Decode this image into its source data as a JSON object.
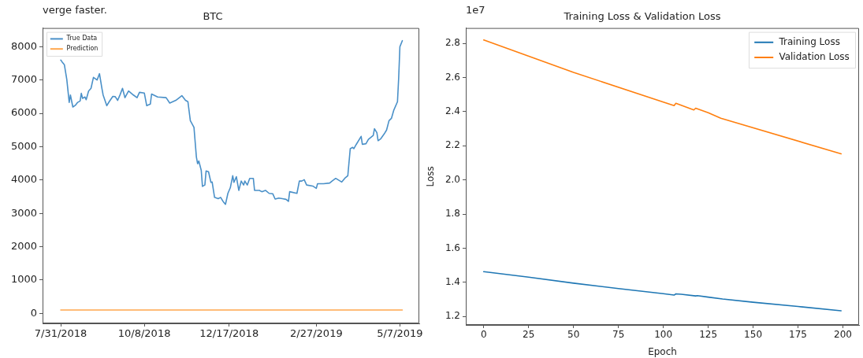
{
  "chart_data": [
    {
      "type": "line",
      "title": "BTC",
      "annotations": [
        "verge faster."
      ],
      "legend": "top left",
      "xlim": [
        "2018-07-16",
        "2019-05-23"
      ],
      "xticks": [
        {
          "value": "2018-07-31",
          "label": "7/31/2018"
        },
        {
          "value": "2018-10-08",
          "label": "10/8/2018"
        },
        {
          "value": "2018-12-17",
          "label": "12/17/2018"
        },
        {
          "value": "2019-02-27",
          "label": "2/27/2019"
        },
        {
          "value": "2019-05-07",
          "label": "5/7/2019"
        }
      ],
      "ylim": [
        -300,
        8560
      ],
      "yticks": [
        0,
        1000,
        2000,
        3000,
        4000,
        5000,
        6000,
        7000,
        8000
      ],
      "series": [
        {
          "name": "True Data",
          "color": "#4a90c8",
          "x": [
            "2018-07-31",
            "2018-08-01",
            "2018-08-03",
            "2018-08-05",
            "2018-08-07",
            "2018-08-08",
            "2018-08-10",
            "2018-08-12",
            "2018-08-14",
            "2018-08-16",
            "2018-08-17",
            "2018-08-18",
            "2018-08-20",
            "2018-08-21",
            "2018-08-23",
            "2018-08-25",
            "2018-08-27",
            "2018-08-30",
            "2018-09-01",
            "2018-09-03",
            "2018-09-04",
            "2018-09-07",
            "2018-09-09",
            "2018-09-12",
            "2018-09-14",
            "2018-09-16",
            "2018-09-18",
            "2018-09-20",
            "2018-09-22",
            "2018-09-25",
            "2018-09-29",
            "2018-10-02",
            "2018-10-04",
            "2018-10-08",
            "2018-10-10",
            "2018-10-13",
            "2018-10-14",
            "2018-10-19",
            "2018-10-26",
            "2018-10-29",
            "2018-11-03",
            "2018-11-08",
            "2018-11-11",
            "2018-11-13",
            "2018-11-15",
            "2018-11-18",
            "2018-11-20",
            "2018-11-21",
            "2018-11-22",
            "2018-11-24",
            "2018-11-25",
            "2018-11-27",
            "2018-11-28",
            "2018-11-30",
            "2018-12-02",
            "2018-12-03",
            "2018-12-05",
            "2018-12-08",
            "2018-12-10",
            "2018-12-12",
            "2018-12-14",
            "2018-12-16",
            "2018-12-18",
            "2018-12-20",
            "2018-12-21",
            "2018-12-23",
            "2018-12-25",
            "2018-12-27",
            "2018-12-29",
            "2018-12-30",
            "2019-01-01",
            "2019-01-03",
            "2019-01-06",
            "2019-01-07",
            "2019-01-11",
            "2019-01-13",
            "2019-01-16",
            "2019-01-19",
            "2019-01-22",
            "2019-01-24",
            "2019-01-27",
            "2019-01-30",
            "2019-02-02",
            "2019-02-04",
            "2019-02-05",
            "2019-02-11",
            "2019-02-13",
            "2019-02-15",
            "2019-02-17",
            "2019-02-19",
            "2019-02-24",
            "2019-02-27",
            "2019-02-28",
            "2019-03-05",
            "2019-03-10",
            "2019-03-12",
            "2019-03-15",
            "2019-03-20",
            "2019-03-23",
            "2019-03-25",
            "2019-03-27",
            "2019-03-29",
            "2019-03-30",
            "2019-04-01",
            "2019-04-05",
            "2019-04-06",
            "2019-04-09",
            "2019-04-11",
            "2019-04-15",
            "2019-04-16",
            "2019-04-18",
            "2019-04-19",
            "2019-04-21",
            "2019-04-24",
            "2019-04-26",
            "2019-04-28",
            "2019-04-30",
            "2019-05-02",
            "2019-05-05",
            "2019-05-06",
            "2019-05-07",
            "2019-05-09"
          ],
          "values": [
            7600,
            7550,
            7460,
            7020,
            6330,
            6550,
            6190,
            6240,
            6330,
            6370,
            6600,
            6450,
            6490,
            6410,
            6670,
            6750,
            7080,
            7000,
            7190,
            6750,
            6550,
            6230,
            6350,
            6510,
            6500,
            6390,
            6560,
            6750,
            6470,
            6670,
            6550,
            6470,
            6630,
            6610,
            6230,
            6280,
            6580,
            6490,
            6470,
            6310,
            6390,
            6530,
            6390,
            6350,
            5780,
            5580,
            4690,
            4490,
            4570,
            4290,
            3810,
            3850,
            4270,
            4250,
            3930,
            3940,
            3480,
            3440,
            3480,
            3360,
            3270,
            3600,
            3770,
            4130,
            3930,
            4100,
            3690,
            3970,
            3850,
            3970,
            3850,
            4050,
            4050,
            3690,
            3690,
            3650,
            3690,
            3600,
            3590,
            3430,
            3460,
            3440,
            3420,
            3360,
            3650,
            3600,
            3970,
            3970,
            4010,
            3850,
            3820,
            3750,
            3890,
            3890,
            3910,
            3970,
            4050,
            3940,
            4070,
            4130,
            4940,
            4980,
            4940,
            5070,
            5310,
            5070,
            5090,
            5220,
            5340,
            5540,
            5420,
            5180,
            5230,
            5380,
            5500,
            5780,
            5850,
            6100,
            6350,
            7070,
            8000,
            8180
          ]
        },
        {
          "name": "Prediction",
          "color": "#ffa64d",
          "x": [
            "2018-07-31",
            "2019-05-09"
          ],
          "values": [
            100,
            100
          ]
        }
      ]
    },
    {
      "type": "line",
      "title": "Training Loss & Validation Loss",
      "xlabel": "Epoch",
      "ylabel": "Loss",
      "annotations": [
        "1e7"
      ],
      "legend": "top right",
      "xlim": [
        -10,
        209
      ],
      "xticks": [
        0,
        25,
        50,
        75,
        100,
        125,
        150,
        175,
        200
      ],
      "ylim": [
        1.15,
        2.89
      ],
      "yticks": [
        {
          "value": 1.2,
          "label": "1.2"
        },
        {
          "value": 1.4,
          "label": "1.4"
        },
        {
          "value": 1.6,
          "label": "1.6"
        },
        {
          "value": 1.8,
          "label": "1.8"
        },
        {
          "value": 2.0,
          "label": "2.0"
        },
        {
          "value": 2.2,
          "label": "2.2"
        },
        {
          "value": 2.4,
          "label": "2.4"
        },
        {
          "value": 2.6,
          "label": "2.6"
        },
        {
          "value": 2.8,
          "label": "2.8"
        }
      ],
      "series": [
        {
          "name": "Training Loss",
          "color": "#1f77b4",
          "x": [
            0,
            25,
            50,
            75,
            100,
            106,
            107,
            110,
            118,
            119,
            125,
            133,
            150,
            175,
            199
          ],
          "values": [
            1.462,
            1.43,
            1.395,
            1.363,
            1.333,
            1.325,
            1.332,
            1.33,
            1.32,
            1.322,
            1.313,
            1.302,
            1.283,
            1.258,
            1.233
          ]
        },
        {
          "name": "Validation Loss",
          "color": "#ff7f0e",
          "x": [
            0,
            50,
            106,
            107,
            117,
            118,
            125,
            132,
            199
          ],
          "values": [
            2.82,
            2.63,
            2.435,
            2.449,
            2.41,
            2.42,
            2.394,
            2.361,
            2.153
          ]
        }
      ]
    }
  ]
}
